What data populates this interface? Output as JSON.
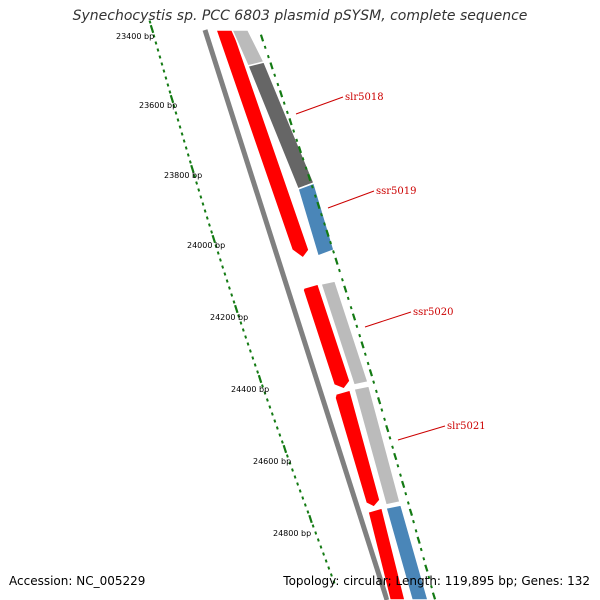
{
  "title": "Synechocystis sp. PCC 6803 plasmid pSYSM, complete sequence",
  "footer": {
    "accession": "Accession: NC_005229",
    "summary": "Topology: circular; Length: 119,895 bp; Genes: 132"
  },
  "colors": {
    "cds_red": "#ff0000",
    "gene_light_gray": "#bbbbbb",
    "gene_dark_gray": "#666666",
    "gene_blue": "#4a86b8",
    "backbone": "#808080",
    "tick_green": "#137a13",
    "label_red": "#cc0000"
  },
  "scale_labels": [
    "23400 bp",
    "23600 bp",
    "23800 bp",
    "24000 bp",
    "24200 bp",
    "24400 bp",
    "24600 bp",
    "24800 bp"
  ],
  "genes": [
    "slr5018",
    "ssr5019",
    "ssr5020",
    "slr5021"
  ]
}
